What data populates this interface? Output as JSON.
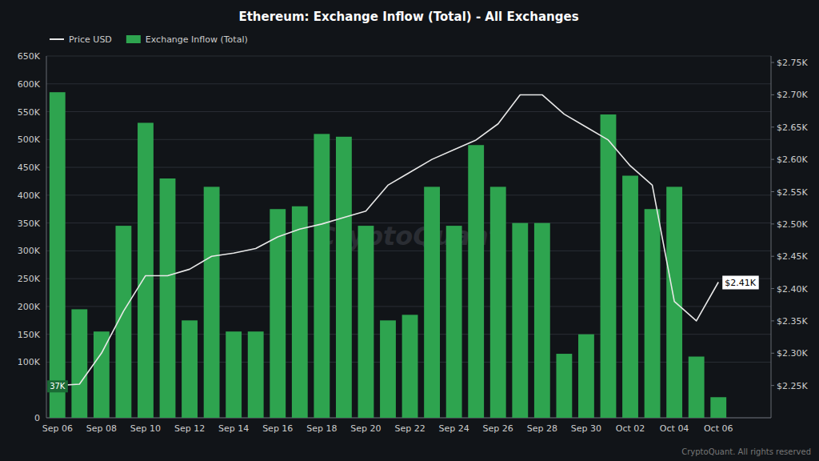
{
  "chart_data": {
    "type": "bar",
    "title": "Ethereum: Exchange Inflow (Total) - All Exchanges",
    "categories": [
      "Sep 06",
      null,
      "Sep 08",
      null,
      "Sep 10",
      null,
      "Sep 12",
      null,
      "Sep 14",
      null,
      "Sep 16",
      null,
      "Sep 18",
      null,
      "Sep 20",
      null,
      "Sep 22",
      null,
      "Sep 24",
      null,
      "Sep 26",
      null,
      "Sep 28",
      null,
      "Sep 30",
      null,
      "Oct 02",
      null,
      "Oct 04",
      null,
      "Oct 06"
    ],
    "series": [
      {
        "name": "Price USD",
        "type": "line",
        "axis": "y2",
        "color": "#e8e8e8",
        "values": [
          2250,
          2252,
          2300,
          2365,
          2420,
          2420,
          2430,
          2450,
          2455,
          2462,
          2480,
          2492,
          2500,
          2510,
          2520,
          2560,
          2580,
          2600,
          2615,
          2630,
          2655,
          2700,
          2700,
          2670,
          2650,
          2630,
          2590,
          2560,
          2380,
          2350,
          2410
        ]
      },
      {
        "name": "Exchange Inflow (Total)",
        "type": "bar",
        "color": "#2ea44f",
        "values": [
          585000,
          195000,
          155000,
          345000,
          530000,
          430000,
          175000,
          415000,
          155000,
          155000,
          375000,
          380000,
          510000,
          505000,
          345000,
          175000,
          185000,
          415000,
          345000,
          490000,
          415000,
          350000,
          350000,
          115000,
          150000,
          545000,
          435000,
          375000,
          415000,
          110000,
          37000
        ]
      }
    ],
    "ylim": [
      0,
      650000
    ],
    "yticks": [
      0,
      {
        "value": 100000,
        "label": "100K"
      },
      {
        "value": 150000,
        "label": "150K"
      },
      {
        "value": 200000,
        "label": "200K"
      },
      {
        "value": 250000,
        "label": "250K"
      },
      {
        "value": 300000,
        "label": "300K"
      },
      {
        "value": 350000,
        "label": "350K"
      },
      {
        "value": 400000,
        "label": "400K"
      },
      {
        "value": 450000,
        "label": "450K"
      },
      {
        "value": 500000,
        "label": "500K"
      },
      {
        "value": 550000,
        "label": "550K"
      },
      {
        "value": 600000,
        "label": "600K"
      },
      {
        "value": 650000,
        "label": "650K"
      }
    ],
    "y2lim": [
      2200,
      2760
    ],
    "y2ticks": [
      {
        "value": 2250,
        "label": "$2.25K"
      },
      {
        "value": 2300,
        "label": "$2.30K"
      },
      {
        "value": 2350,
        "label": "$2.35K"
      },
      {
        "value": 2400,
        "label": "$2.40K"
      },
      {
        "value": 2450,
        "label": "$2.45K"
      },
      {
        "value": 2500,
        "label": "$2.50K"
      },
      {
        "value": 2550,
        "label": "$2.55K"
      },
      {
        "value": 2600,
        "label": "$2.60K"
      },
      {
        "value": 2650,
        "label": "$2.65K"
      },
      {
        "value": 2700,
        "label": "$2.70K"
      },
      {
        "value": 2750,
        "label": "$2.75K"
      }
    ],
    "grid": true,
    "legend": "top-left",
    "annotations": [
      {
        "text": "37K",
        "x": "Sep 06",
        "y": 37000
      },
      {
        "text": "$2.41K",
        "x": "Oct 06",
        "y": 2410,
        "axis": "y2"
      }
    ],
    "watermark": "CryptoQuant",
    "source": "CryptoQuant. All rights reserved"
  }
}
